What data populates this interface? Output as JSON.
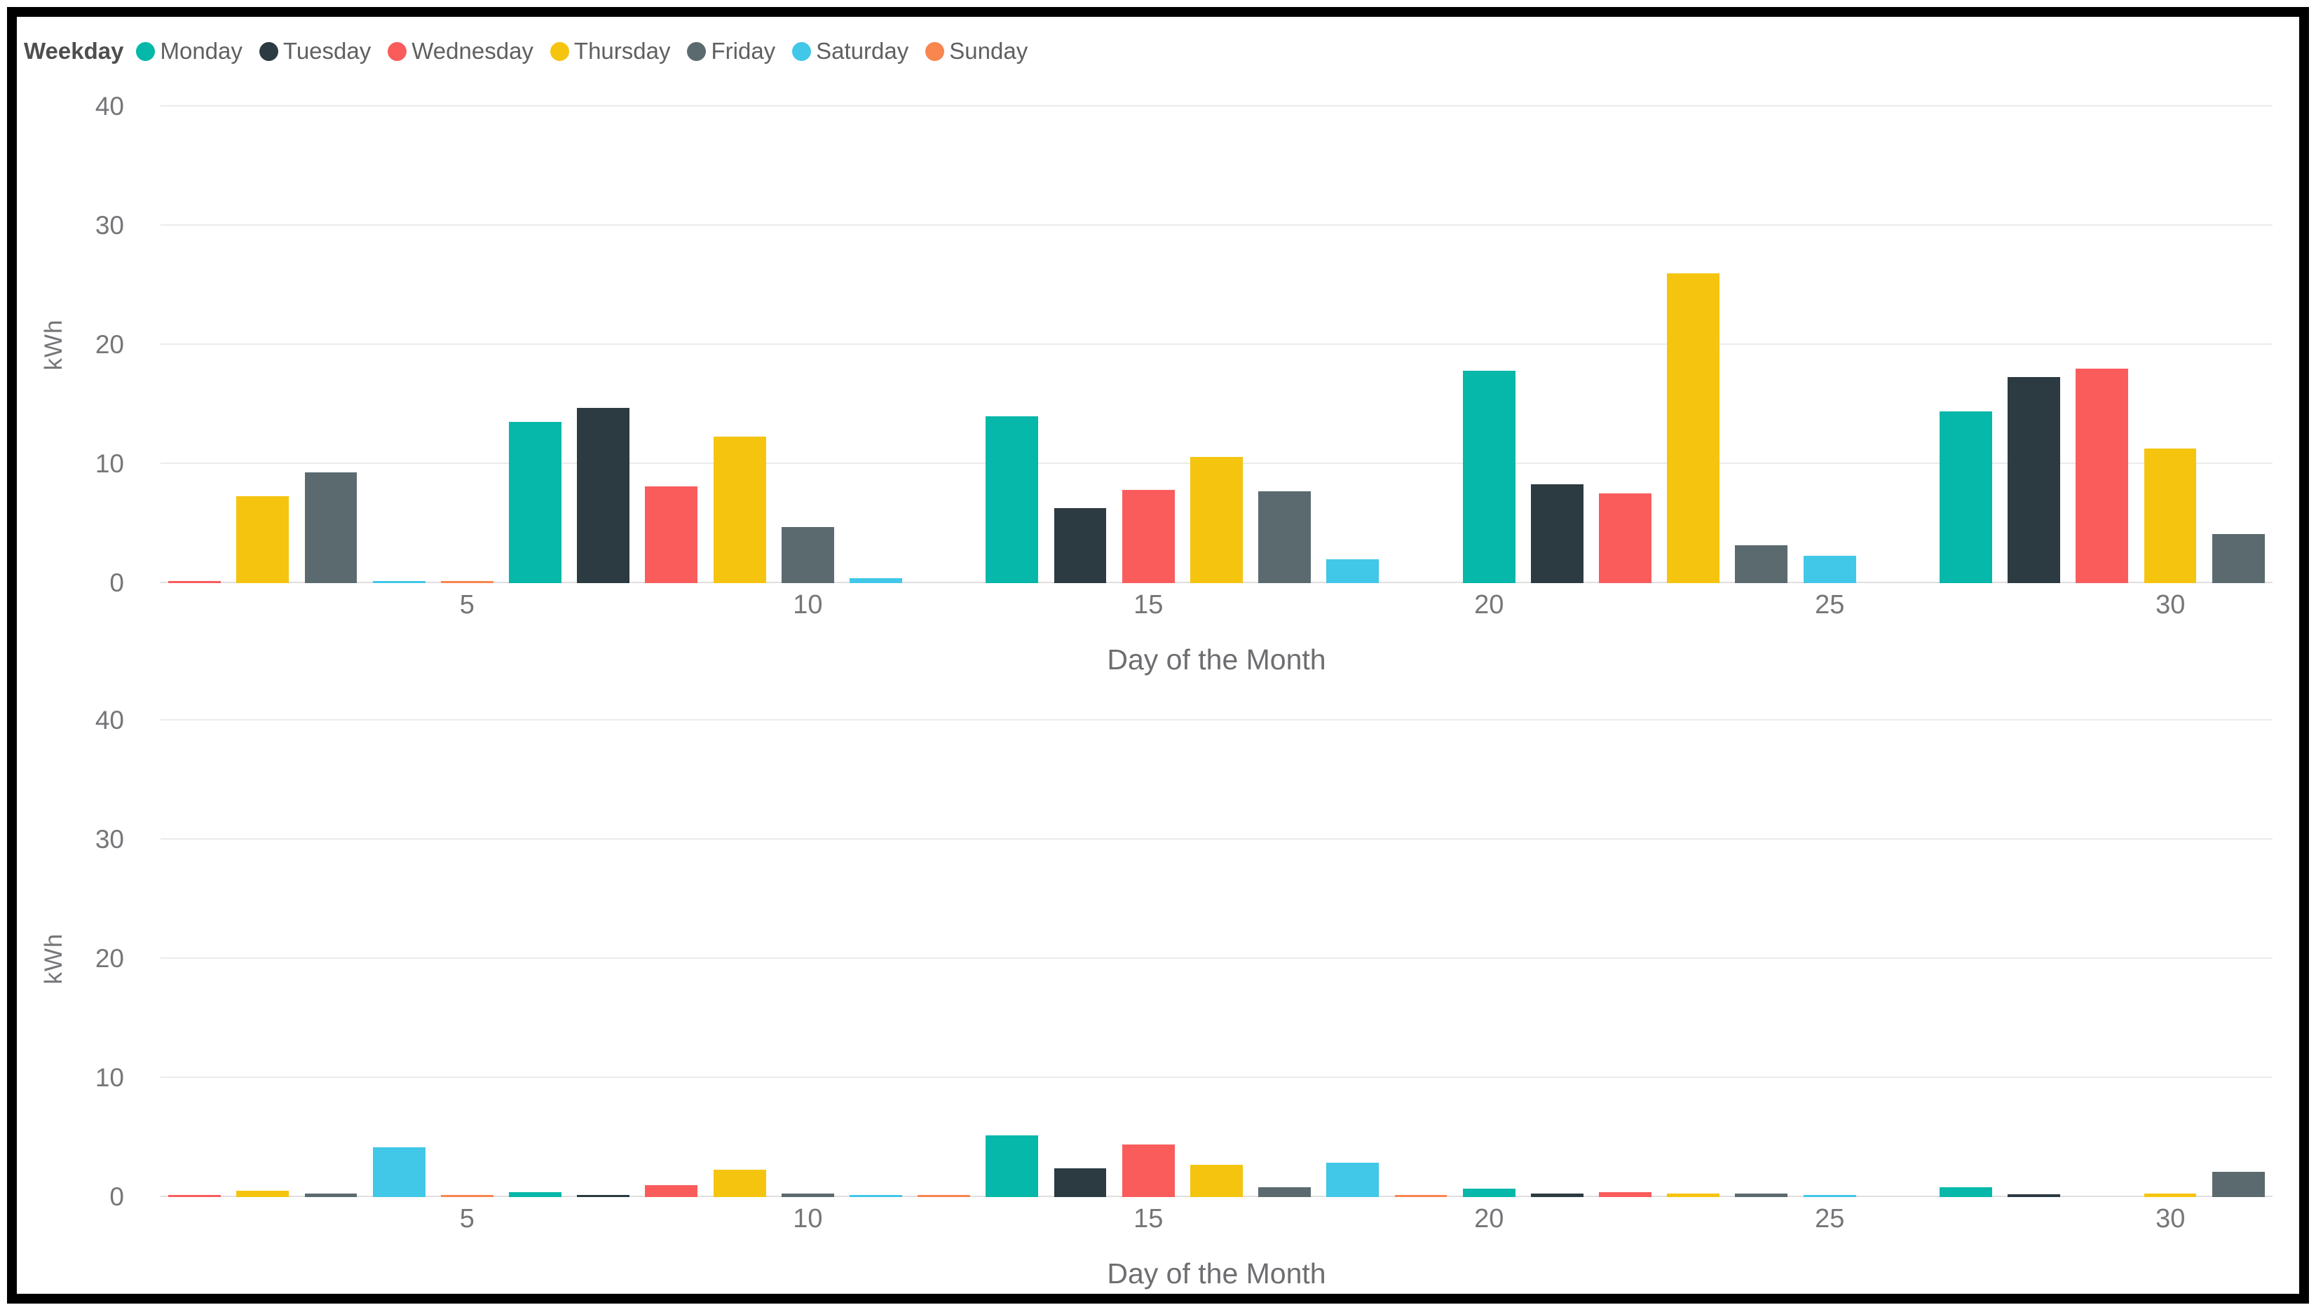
{
  "legend": {
    "title": "Weekday",
    "items": [
      {
        "label": "Monday",
        "color": "#06B8A9"
      },
      {
        "label": "Tuesday",
        "color": "#2C3A41"
      },
      {
        "label": "Wednesday",
        "color": "#FA5C5C"
      },
      {
        "label": "Thursday",
        "color": "#F5C40F"
      },
      {
        "label": "Friday",
        "color": "#5B6A6E"
      },
      {
        "label": "Saturday",
        "color": "#41C7E8"
      },
      {
        "label": "Sunday",
        "color": "#F9854F"
      }
    ]
  },
  "chart_data": [
    {
      "type": "bar",
      "position": "top",
      "title": "",
      "xlabel": "Day of the Month",
      "ylabel": "kWh",
      "ylim": [
        0,
        40
      ],
      "yticks": [
        0,
        10,
        20,
        30,
        40
      ],
      "xticks": [
        5,
        10,
        15,
        20,
        25,
        30
      ],
      "grid": "horizontal",
      "legend_position": "top",
      "x_days": [
        1,
        2,
        3,
        4,
        5,
        6,
        7,
        8,
        9,
        10,
        11,
        12,
        13,
        14,
        15,
        16,
        17,
        18,
        19,
        20,
        21,
        22,
        23,
        24,
        25,
        26,
        27,
        28,
        29,
        30,
        31
      ],
      "bar_weekdays": [
        "Wednesday",
        "Thursday",
        "Friday",
        "Saturday",
        "Sunday",
        "Monday",
        "Tuesday",
        "Wednesday",
        "Thursday",
        "Friday",
        "Saturday",
        "Sunday",
        "Monday",
        "Tuesday",
        "Wednesday",
        "Thursday",
        "Friday",
        "Saturday",
        "Sunday",
        "Monday",
        "Tuesday",
        "Wednesday",
        "Thursday",
        "Friday",
        "Saturday",
        "Sunday",
        "Monday",
        "Tuesday",
        "Wednesday",
        "Thursday",
        "Friday"
      ],
      "values_kwh": [
        0.1,
        7.3,
        9.3,
        0.15,
        0.1,
        13.5,
        14.7,
        8.1,
        12.3,
        4.7,
        0.4,
        0,
        14.0,
        6.3,
        7.8,
        10.6,
        7.7,
        2.0,
        0,
        17.8,
        8.3,
        7.5,
        26.0,
        3.2,
        2.3,
        0,
        14.4,
        17.3,
        18.0,
        11.3,
        4.1
      ]
    },
    {
      "type": "bar",
      "position": "bottom",
      "title": "",
      "xlabel": "Day of the Month",
      "ylabel": "kWh",
      "ylim": [
        0,
        40
      ],
      "yticks": [
        0,
        10,
        20,
        30,
        40
      ],
      "xticks": [
        5,
        10,
        15,
        20,
        25,
        30
      ],
      "grid": "horizontal",
      "legend_position": "none",
      "x_days": [
        1,
        2,
        3,
        4,
        5,
        6,
        7,
        8,
        9,
        10,
        11,
        12,
        13,
        14,
        15,
        16,
        17,
        18,
        19,
        20,
        21,
        22,
        23,
        24,
        25,
        26,
        27,
        28,
        29,
        30,
        31
      ],
      "bar_weekdays": [
        "Wednesday",
        "Thursday",
        "Friday",
        "Saturday",
        "Sunday",
        "Monday",
        "Tuesday",
        "Wednesday",
        "Thursday",
        "Friday",
        "Saturday",
        "Sunday",
        "Monday",
        "Tuesday",
        "Wednesday",
        "Thursday",
        "Friday",
        "Saturday",
        "Sunday",
        "Monday",
        "Tuesday",
        "Wednesday",
        "Thursday",
        "Friday",
        "Saturday",
        "Sunday",
        "Monday",
        "Tuesday",
        "Wednesday",
        "Thursday",
        "Friday"
      ],
      "values_kwh": [
        0.2,
        0.5,
        0.3,
        4.2,
        0.1,
        0.4,
        0.2,
        1.0,
        2.3,
        0.3,
        0.2,
        0.15,
        5.2,
        2.4,
        4.4,
        2.7,
        0.8,
        2.9,
        0.15,
        0.7,
        0.3,
        0.4,
        0.3,
        0.3,
        0.2,
        0,
        0.8,
        0.25,
        0,
        0.3,
        2.1
      ]
    }
  ]
}
